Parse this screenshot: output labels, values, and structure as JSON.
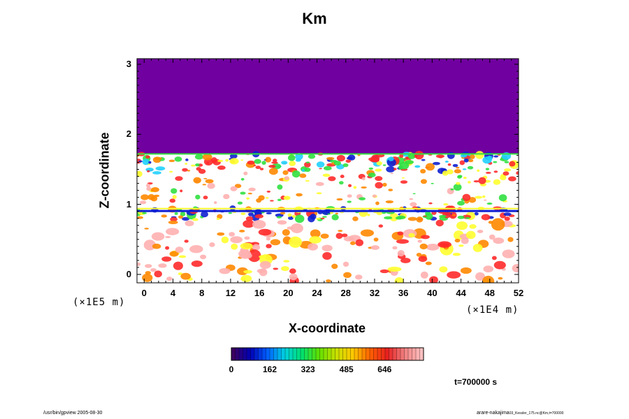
{
  "chart_data": {
    "type": "heatmap",
    "title": "Km",
    "xlabel": "X-coordinate",
    "ylabel": "Z-coordinate",
    "x_scale_note": "(×1E4 m)",
    "y_scale_note": "(×1E5 m)",
    "xlim": [
      -1,
      52
    ],
    "ylim": [
      -0.12,
      3.08
    ],
    "x_ticks": [
      "0",
      "4",
      "8",
      "12",
      "16",
      "20",
      "24",
      "28",
      "32",
      "36",
      "40",
      "44",
      "48",
      "52"
    ],
    "y_ticks": [
      "0",
      "1",
      "2",
      "3"
    ],
    "colorbar": {
      "ticks": [
        "0",
        "162",
        "323",
        "485",
        "646"
      ],
      "range": [
        0,
        810
      ],
      "colors": [
        "#3c0060",
        "#0000b4",
        "#0060ff",
        "#00d0e0",
        "#00e070",
        "#60e000",
        "#c8e000",
        "#ffc800",
        "#ff6000",
        "#e82020",
        "#f08080",
        "#ffc0c0"
      ]
    },
    "fill_top_color": "#7000a0",
    "fill_top_from_z": 1.72,
    "time_label": "t=700000 s",
    "colors": {
      "fill_top": "#7000a0",
      "red": "#ff2a2a",
      "orange": "#ff8800",
      "yellow": "#ffff30",
      "green": "#30e040",
      "cyan": "#20d0ff",
      "blue": "#1020d0",
      "pink": "#ffb0b0"
    }
  },
  "footer": {
    "left": "/usr/bin/gpview 2005-08-30",
    "right_main": "arare-nakajima",
    "right_small": "03_Kessler_175.nc@Km,t=700000"
  }
}
